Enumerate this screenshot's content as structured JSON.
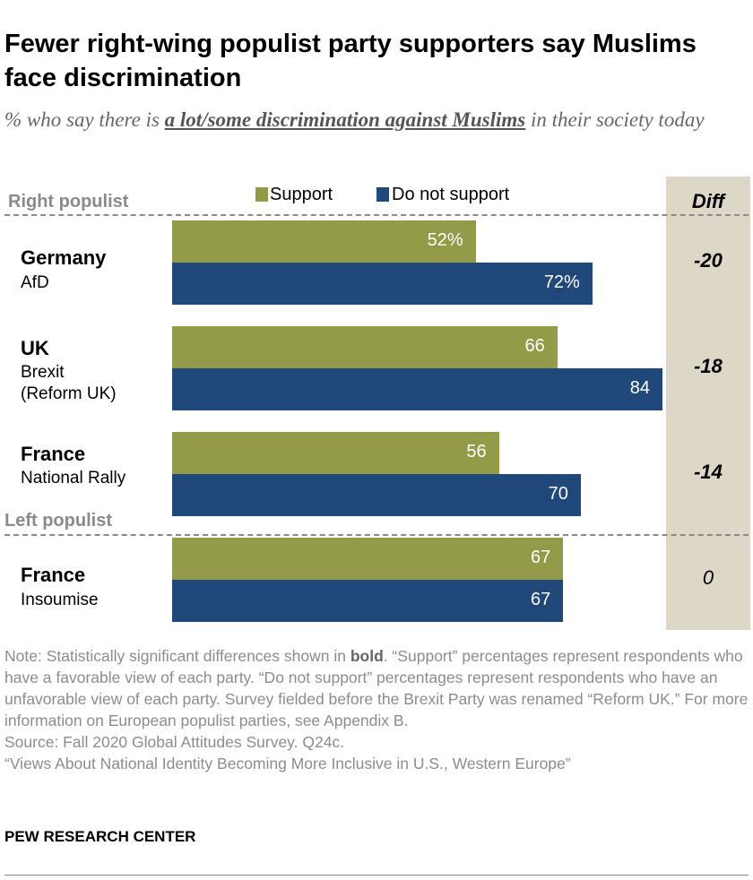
{
  "chart_data": {
    "type": "bar",
    "title": "Fewer right-wing populist party supporters say Muslims face discrimination",
    "subtitle_pre": "% who say there is ",
    "subtitle_em": "a lot/some discrimination against Muslims",
    "subtitle_post": " in their society today",
    "legend": [
      "Support",
      "Do not support"
    ],
    "diff_header": "Diff",
    "groups": [
      {
        "label": "Right populist"
      },
      {
        "label": "Left populist"
      }
    ],
    "rows": [
      {
        "country": "Germany",
        "party": "AfD",
        "support": 52,
        "not_support": 72,
        "support_label": "52%",
        "not_support_label": "72%",
        "diff": "-20",
        "bold": true
      },
      {
        "country": "UK",
        "party": "Brexit\n(Reform UK)",
        "support": 66,
        "not_support": 84,
        "support_label": "66",
        "not_support_label": "84",
        "diff": "-18",
        "bold": true
      },
      {
        "country": "France",
        "party": "National Rally",
        "support": 56,
        "not_support": 70,
        "support_label": "56",
        "not_support_label": "70",
        "diff": "-14",
        "bold": true
      },
      {
        "country": "France",
        "party": "Insoumise",
        "support": 67,
        "not_support": 67,
        "support_label": "67",
        "not_support_label": "67",
        "diff": "0",
        "bold": false
      }
    ],
    "colors": {
      "support": "#939b48",
      "not_support": "#21487a"
    }
  },
  "note_pre": "Note: Statistically significant differences shown in ",
  "note_bold": "bold",
  "note_post": ". “Support” percentages represent respondents who have a favorable view of each party. “Do not support” percentages represent respondents who have an unfavorable view of each party. Survey fielded before the Brexit Party was renamed “Reform UK.” For more information on European populist parties, see Appendix B.",
  "source": "Source: Fall 2020 Global Attitudes Survey. Q24c.",
  "report": "“Views About National Identity Becoming More Inclusive in U.S., Western Europe”",
  "brand": "PEW RESEARCH CENTER"
}
